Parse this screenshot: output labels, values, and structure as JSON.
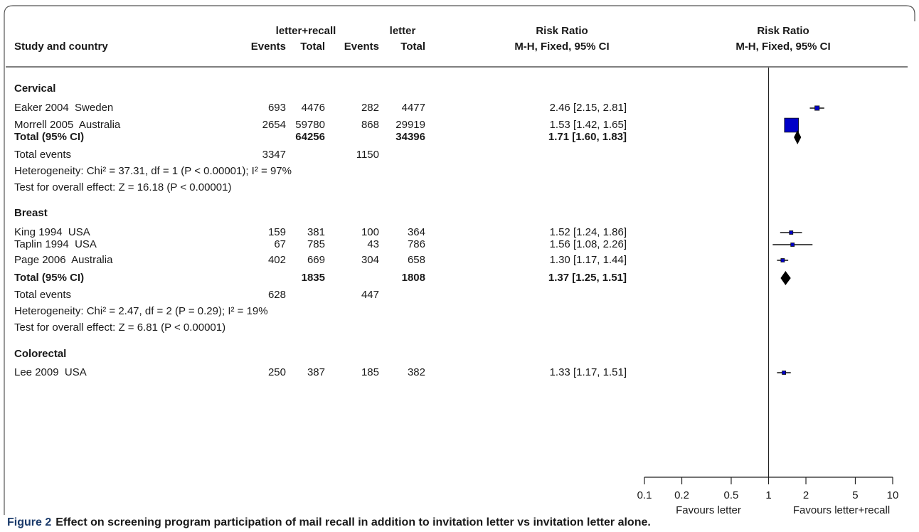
{
  "chart_data": {
    "type": "forest",
    "study_header": "Study and country",
    "group_headers": [
      {
        "name": "letter+recall",
        "events": "Events",
        "total": "Total"
      },
      {
        "name": "letter",
        "events": "Events",
        "total": "Total"
      }
    ],
    "effect_headers": [
      {
        "title": "Risk Ratio",
        "method": "M-H, Fixed, 95% CI"
      },
      {
        "title": "Risk Ratio",
        "method": "M-H, Fixed, 95% CI"
      }
    ],
    "subgroups": [
      {
        "name": "Cervical",
        "studies": [
          {
            "label": "Eaker 2004  Sweden",
            "events_1": 693,
            "total_1": 4476,
            "events_2": 282,
            "total_2": 4477,
            "rr": 2.46,
            "ci": [
              2.15,
              2.81
            ],
            "value_label": "2.46 [2.15, 2.81]"
          },
          {
            "label": "Morrell 2005  Australia",
            "events_1": 2654,
            "total_1": 59780,
            "events_2": 868,
            "total_2": 29919,
            "rr": 1.53,
            "ci": [
              1.42,
              1.65
            ],
            "value_label": "1.53 [1.42, 1.65]"
          }
        ],
        "total": {
          "label": "Total (95% CI)",
          "total_1": 64256,
          "total_2": 34396,
          "rr": 1.71,
          "ci": [
            1.6,
            1.83
          ],
          "value_label": "1.71 [1.60, 1.83]"
        },
        "total_events": {
          "label": "Total events",
          "events_1": 3347,
          "events_2": 1150
        },
        "heterogeneity": "Heterogeneity: Chi² = 37.31, df = 1 (P < 0.00001); I² = 97%",
        "overall_effect": "Test for overall effect: Z = 16.18 (P < 0.00001)"
      },
      {
        "name": "Breast",
        "studies": [
          {
            "label": "King 1994  USA",
            "events_1": 159,
            "total_1": 381,
            "events_2": 100,
            "total_2": 364,
            "rr": 1.52,
            "ci": [
              1.24,
              1.86
            ],
            "value_label": "1.52 [1.24, 1.86]"
          },
          {
            "label": "Taplin 1994  USA",
            "events_1": 67,
            "total_1": 785,
            "events_2": 43,
            "total_2": 786,
            "rr": 1.56,
            "ci": [
              1.08,
              2.26
            ],
            "value_label": "1.56 [1.08, 2.26]"
          },
          {
            "label": "Page 2006  Australia",
            "events_1": 402,
            "total_1": 669,
            "events_2": 304,
            "total_2": 658,
            "rr": 1.3,
            "ci": [
              1.17,
              1.44
            ],
            "value_label": "1.30 [1.17, 1.44]"
          }
        ],
        "total": {
          "label": "Total (95% CI)",
          "total_1": 1835,
          "total_2": 1808,
          "rr": 1.37,
          "ci": [
            1.25,
            1.51
          ],
          "value_label": "1.37 [1.25, 1.51]"
        },
        "total_events": {
          "label": "Total events",
          "events_1": 628,
          "events_2": 447
        },
        "heterogeneity": "Heterogeneity: Chi² = 2.47, df = 2 (P = 0.29); I² = 19%",
        "overall_effect": "Test for overall effect: Z = 6.81 (P < 0.00001)"
      },
      {
        "name": "Colorectal",
        "studies": [
          {
            "label": "Lee 2009  USA",
            "events_1": 250,
            "total_1": 387,
            "events_2": 185,
            "total_2": 382,
            "rr": 1.33,
            "ci": [
              1.17,
              1.51
            ],
            "value_label": "1.33 [1.17, 1.51]"
          }
        ]
      }
    ],
    "xlim": [
      0.1,
      10
    ],
    "xticks": [
      0.1,
      0.2,
      0.5,
      1,
      2,
      5,
      10
    ],
    "log_scale": true,
    "favours_left": "Favours letter",
    "favours_right": "Favours letter+recall",
    "square_color": "#0000c8",
    "caption_label": "Figure 2",
    "caption": "Effect on screening program participation of mail recall in addition to invitation letter vs invitation letter alone."
  }
}
